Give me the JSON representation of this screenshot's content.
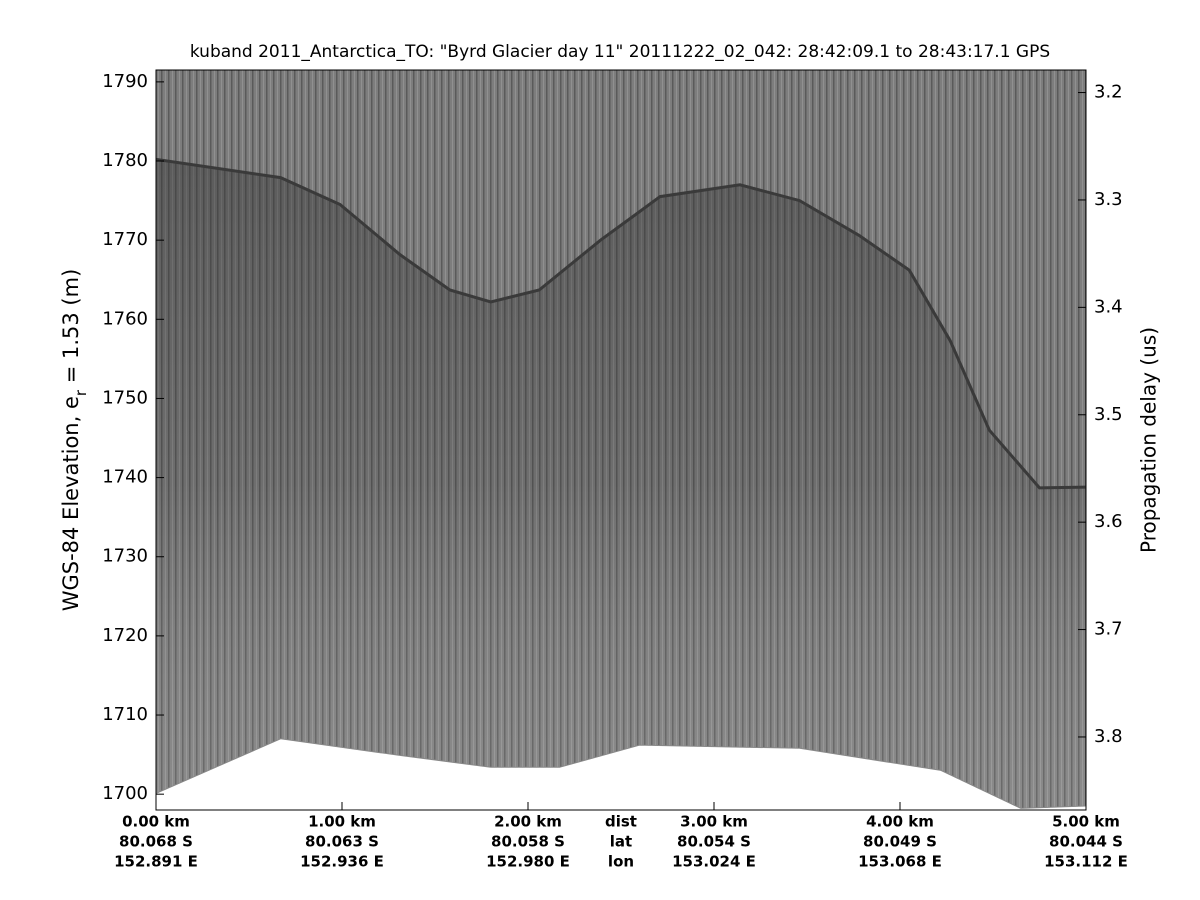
{
  "chart_data": {
    "type": "echogram",
    "title": "kuband 2011_Antarctica_TO: \"Byrd Glacier day 11\"  20111222_02_042: 28:42:09.1 to 28:43:17.1 GPS",
    "ylabel": {
      "main": "WGS-84 Elevation, e",
      "sub": "r",
      "rest": " = 1.53 (m)"
    },
    "y2label": "Propagation delay (us)",
    "xlim": [
      0,
      5
    ],
    "xticks": [
      {
        "value": 0,
        "label": "0.00 km"
      },
      {
        "value": 1,
        "label": "1.00 km"
      },
      {
        "value": 2,
        "label": "2.00 km"
      },
      {
        "value": 3,
        "label": "3.00 km"
      },
      {
        "value": 4,
        "label": "4.00 km"
      },
      {
        "value": 5,
        "label": "5.00 km"
      }
    ],
    "xtick_lat": [
      "80.068 S",
      "80.063 S",
      "80.058 S",
      "80.054 S",
      "80.049 S",
      "80.044 S"
    ],
    "xtick_lon": [
      "152.891 E",
      "152.936 E",
      "152.980 E",
      "153.024 E",
      "153.068 E",
      "153.112 E"
    ],
    "x_row_names": [
      "dist",
      "lat",
      "lon"
    ],
    "ylim": [
      1698,
      1791.5
    ],
    "yticks": [
      1700,
      1710,
      1720,
      1730,
      1740,
      1750,
      1760,
      1770,
      1780,
      1790
    ],
    "y2lim": [
      3.868,
      3.179
    ],
    "y2ticks": [
      3.2,
      3.3,
      3.4,
      3.5,
      3.6,
      3.7,
      3.8
    ],
    "surface": {
      "x": [
        0,
        0.67,
        0.99,
        1.31,
        1.58,
        1.8,
        2.06,
        2.39,
        2.71,
        3.14,
        3.46,
        3.78,
        4.05,
        4.27,
        4.48,
        4.75,
        5
      ],
      "values": [
        1780.2,
        1777.9,
        1774.5,
        1768.2,
        1763.7,
        1762.2,
        1763.7,
        1770,
        1775.5,
        1777,
        1775,
        1770.6,
        1766.2,
        1757.3,
        1746,
        1738.7,
        1738.8
      ]
    },
    "data_bottom": {
      "x": [
        0,
        0.67,
        1.31,
        1.8,
        2.17,
        2.6,
        3.46,
        4.22,
        4.65,
        5
      ],
      "values": [
        1700.1,
        1707,
        1704.9,
        1703.4,
        1703.4,
        1706.2,
        1705.8,
        1703,
        1698.2,
        1698.5
      ]
    }
  }
}
